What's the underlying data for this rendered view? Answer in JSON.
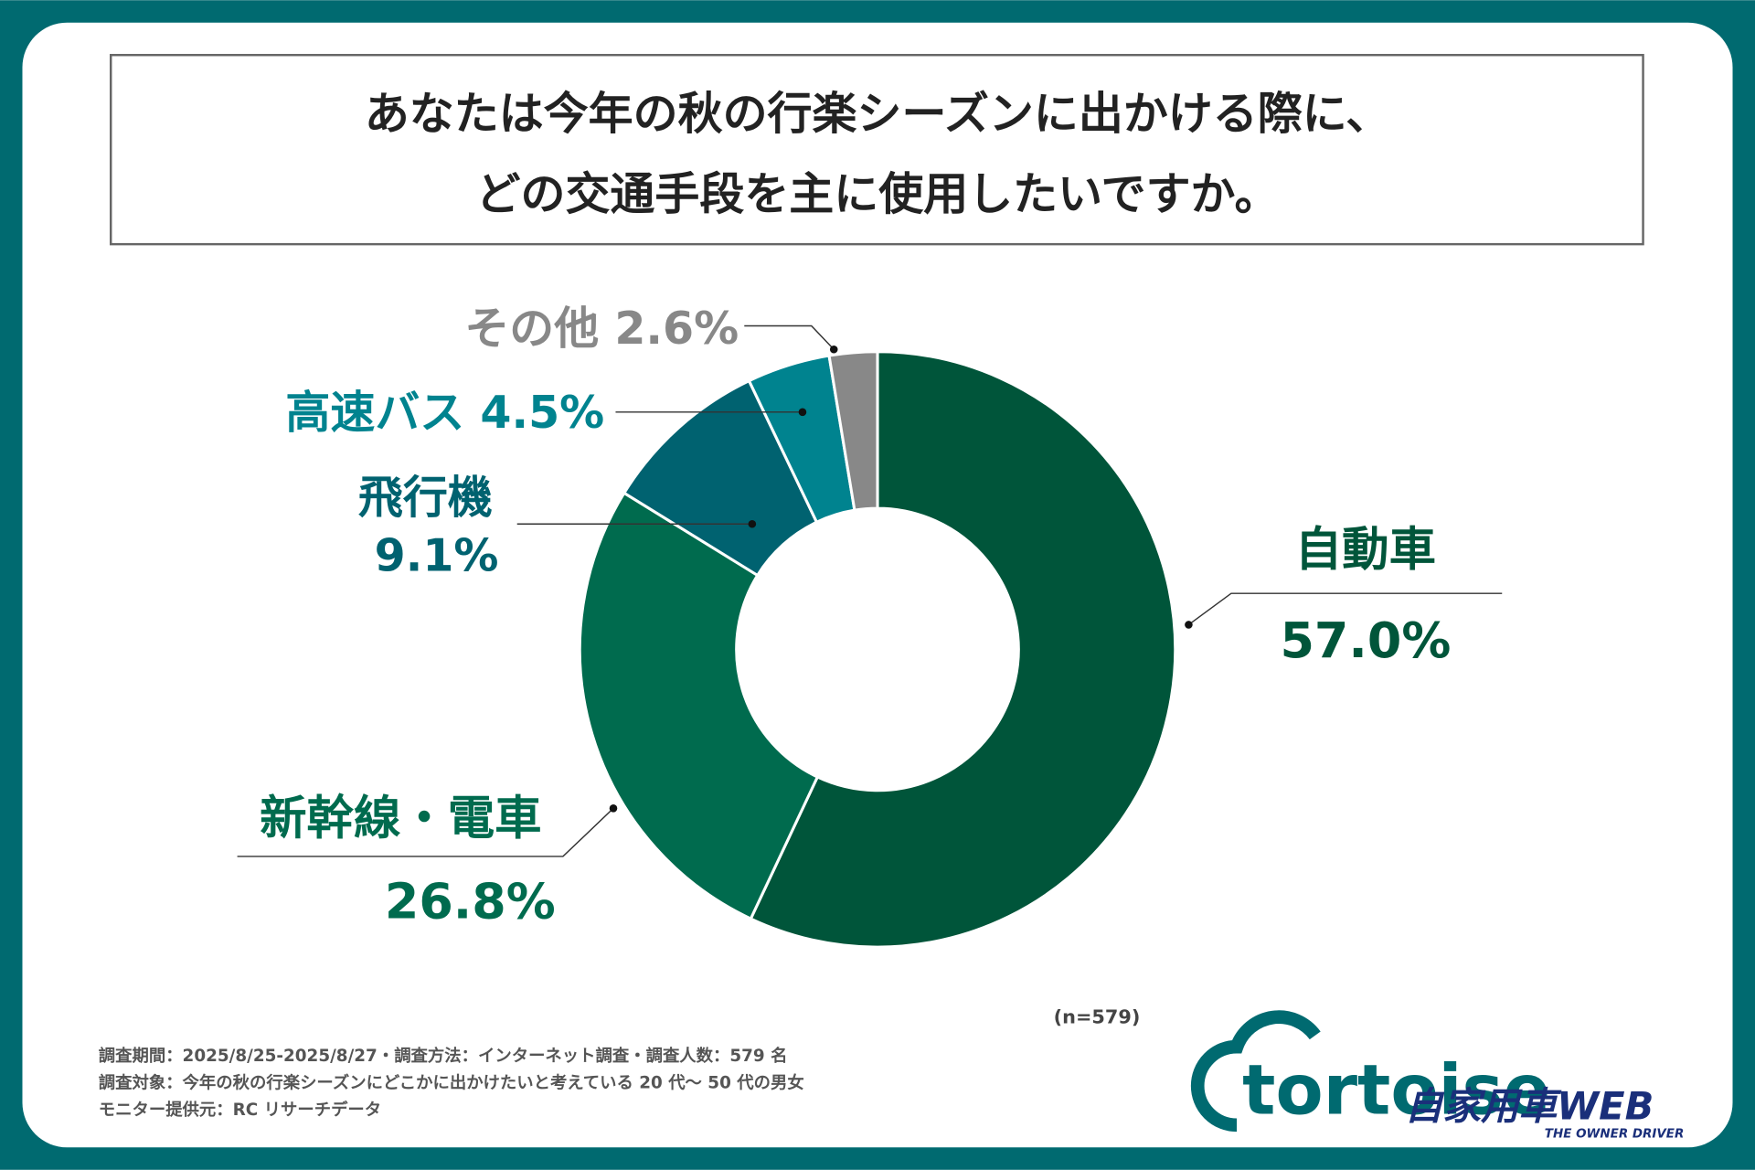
{
  "chart_data": {
    "type": "donut",
    "title": [
      "あなたは今年の秋の行楽シーズンに出かける際に、",
      "どの交通手段を主に使用したいですか。"
    ],
    "categories": [
      "自動車",
      "新幹線・電車",
      "飛行機",
      "高速バス",
      "その他"
    ],
    "values": [
      57.0,
      26.8,
      9.1,
      4.5,
      2.6
    ],
    "value_labels": [
      "57.0%",
      "26.8%",
      "9.1%",
      "4.5%",
      "2.6%"
    ],
    "colors": [
      "#00553a",
      "#006b4e",
      "#006270",
      "#00838f",
      "#888888"
    ],
    "sample": "(n=579)",
    "notes": [
      "調査期間：2025/8/25-2025/8/27・調査方法：インターネット調査・調査人数：579 名",
      "調査対象：今年の秋の行楽シーズンにどこかに出かけたいと考えている 20 代～ 50 代の男女",
      "モニター提供元：RC リサーチデータ"
    ]
  },
  "logo": {
    "brand": "tortoise",
    "magazine": "自家用車WEB",
    "tagline": "THE OWNER DRIVER"
  }
}
